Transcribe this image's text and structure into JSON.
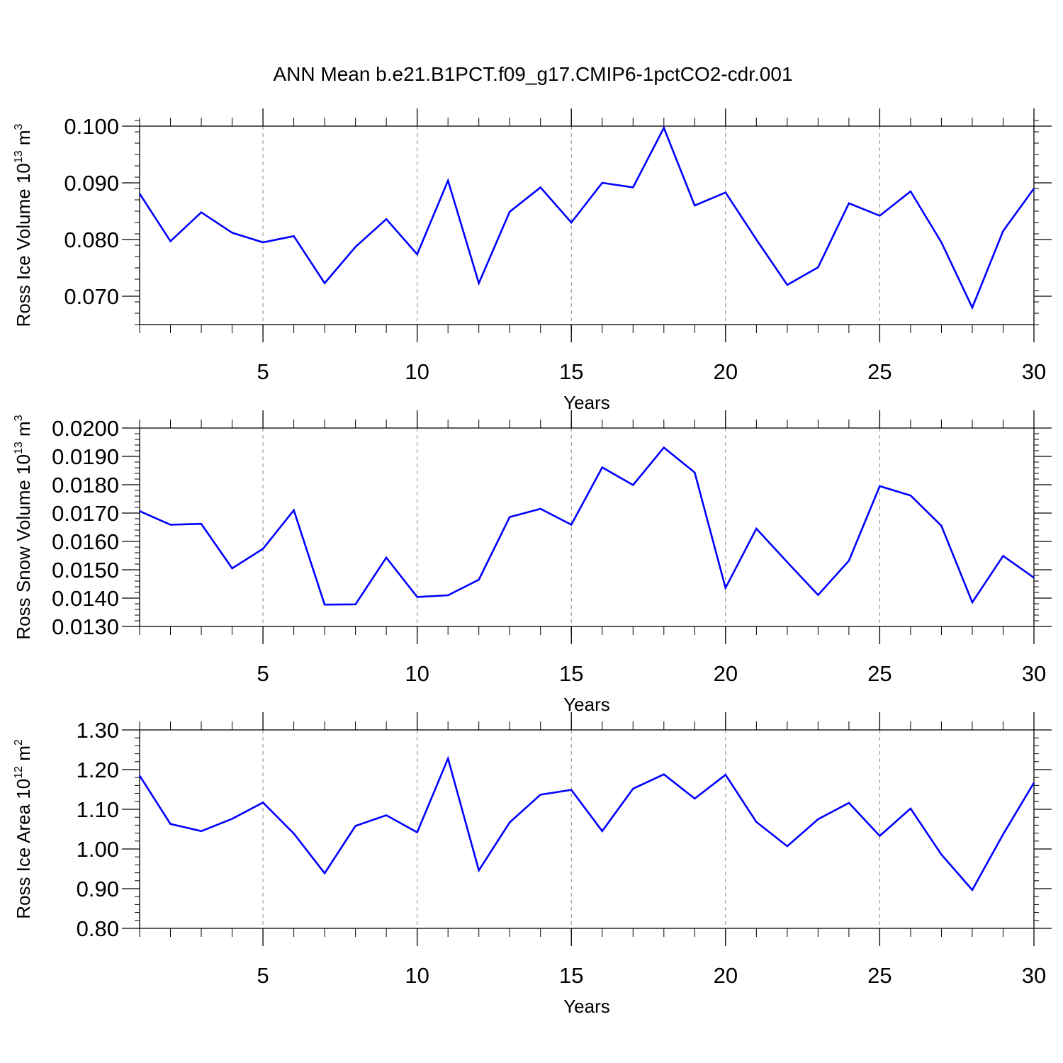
{
  "title": "ANN Mean b.e21.B1PCT.f09_g17.CMIP6-1pctCO2-cdr.001",
  "chart_data": [
    {
      "type": "line",
      "title": "",
      "xlabel": "Years",
      "ylabel": {
        "text": "Ross Ice Volume 10",
        "sup": "13",
        "unit": " m",
        "unit_sup": "3"
      },
      "x": [
        1,
        2,
        3,
        4,
        5,
        6,
        7,
        8,
        9,
        10,
        11,
        12,
        13,
        14,
        15,
        16,
        17,
        18,
        19,
        20,
        21,
        22,
        23,
        24,
        25,
        26,
        27,
        28,
        29,
        30
      ],
      "xlim": [
        1,
        30
      ],
      "ylim": [
        0.065,
        0.1
      ],
      "xticks": [
        5,
        10,
        15,
        20,
        25,
        30
      ],
      "xtick_labels": [
        "5",
        "10",
        "15",
        "20",
        "25",
        "30"
      ],
      "yticks": [
        0.07,
        0.08,
        0.09,
        0.1
      ],
      "ytick_labels": [
        "0.070",
        "0.080",
        "0.090",
        "0.100"
      ],
      "y_minor_step": 0.002,
      "grid": "vertical dashed at major x ticks",
      "color": "#0000ff",
      "series": [
        {
          "values": [
            0.0881,
            0.0797,
            0.0848,
            0.0812,
            0.0795,
            0.0806,
            0.0723,
            0.0787,
            0.0836,
            0.0774,
            0.0904,
            0.0723,
            0.0849,
            0.0892,
            0.083,
            0.09,
            0.0892,
            0.0997,
            0.086,
            0.0883,
            0.08,
            0.072,
            0.0751,
            0.0864,
            0.0842,
            0.0885,
            0.0795,
            0.068,
            0.0815,
            0.089
          ]
        }
      ]
    },
    {
      "type": "line",
      "title": "",
      "xlabel": "Years",
      "ylabel": {
        "text": "Ross Snow Volume 10",
        "sup": "13",
        "unit": " m",
        "unit_sup": "3"
      },
      "x": [
        1,
        2,
        3,
        4,
        5,
        6,
        7,
        8,
        9,
        10,
        11,
        12,
        13,
        14,
        15,
        16,
        17,
        18,
        19,
        20,
        21,
        22,
        23,
        24,
        25,
        26,
        27,
        28,
        29,
        30
      ],
      "xlim": [
        1,
        30
      ],
      "ylim": [
        0.013,
        0.02
      ],
      "xticks": [
        5,
        10,
        15,
        20,
        25,
        30
      ],
      "xtick_labels": [
        "5",
        "10",
        "15",
        "20",
        "25",
        "30"
      ],
      "yticks": [
        0.013,
        0.014,
        0.015,
        0.016,
        0.017,
        0.018,
        0.019,
        0.02
      ],
      "ytick_labels": [
        "0.0130",
        "0.0140",
        "0.0150",
        "0.0160",
        "0.0170",
        "0.0180",
        "0.0190",
        "0.0200"
      ],
      "y_minor_step": 0.0002,
      "grid": "vertical dashed at major x ticks",
      "color": "#0000ff",
      "series": [
        {
          "values": [
            0.01707,
            0.01659,
            0.01662,
            0.01505,
            0.01574,
            0.0171,
            0.01377,
            0.01378,
            0.01543,
            0.01404,
            0.0141,
            0.01465,
            0.01686,
            0.01715,
            0.01659,
            0.01861,
            0.01799,
            0.01931,
            0.01843,
            0.01436,
            0.01645,
            0.01527,
            0.01411,
            0.01532,
            0.01795,
            0.01762,
            0.01655,
            0.01385,
            0.01549,
            0.01472
          ]
        }
      ]
    },
    {
      "type": "line",
      "title": "",
      "xlabel": "Years",
      "ylabel": {
        "text": "Ross Ice Area 10",
        "sup": "12",
        "unit": " m",
        "unit_sup": "2"
      },
      "x": [
        1,
        2,
        3,
        4,
        5,
        6,
        7,
        8,
        9,
        10,
        11,
        12,
        13,
        14,
        15,
        16,
        17,
        18,
        19,
        20,
        21,
        22,
        23,
        24,
        25,
        26,
        27,
        28,
        29,
        30
      ],
      "xlim": [
        1,
        30
      ],
      "ylim": [
        0.8,
        1.3
      ],
      "xticks": [
        5,
        10,
        15,
        20,
        25,
        30
      ],
      "xtick_labels": [
        "5",
        "10",
        "15",
        "20",
        "25",
        "30"
      ],
      "yticks": [
        0.8,
        0.9,
        1.0,
        1.1,
        1.2,
        1.3
      ],
      "ytick_labels": [
        "0.80",
        "0.90",
        "1.00",
        "1.10",
        "1.20",
        "1.30"
      ],
      "y_minor_step": 0.02,
      "grid": "vertical dashed at major x ticks",
      "color": "#0000ff",
      "series": [
        {
          "values": [
            1.185,
            1.063,
            1.045,
            1.076,
            1.117,
            1.039,
            0.939,
            1.058,
            1.085,
            1.042,
            1.228,
            0.946,
            1.067,
            1.137,
            1.149,
            1.045,
            1.152,
            1.188,
            1.127,
            1.187,
            1.068,
            1.007,
            1.075,
            1.116,
            1.033,
            1.102,
            0.986,
            0.897,
            1.037,
            1.167
          ]
        }
      ]
    }
  ]
}
